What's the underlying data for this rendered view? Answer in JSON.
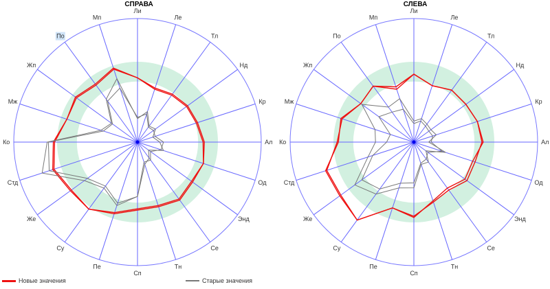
{
  "chart_data": [
    {
      "type": "radar",
      "title": "СПРАВА",
      "axes": [
        "Ли",
        "Ле",
        "Тл",
        "Нд",
        "Кр",
        "Ал",
        "Од",
        "Энд",
        "Се",
        "Тн",
        "Сп",
        "Пе",
        "Су",
        "Же",
        "Стд",
        "Ко",
        "Мж",
        "Жп",
        "По",
        "Мп"
      ],
      "highlighted_axis": "По",
      "range": [
        0,
        1
      ],
      "target_band": [
        0.49,
        0.65
      ],
      "series": [
        {
          "name": "Новые значения",
          "color": "#ee1111",
          "values": [
            0.52,
            0.45,
            0.47,
            0.49,
            0.5,
            0.53,
            0.56,
            0.54,
            0.57,
            0.54,
            0.54,
            0.6,
            0.67,
            0.66,
            0.71,
            0.67,
            0.6,
            0.61,
            0.57,
            0.62
          ]
        },
        {
          "name": "Новые значения",
          "color": "#ee1111",
          "values": [
            0.52,
            0.46,
            0.48,
            0.5,
            0.51,
            0.54,
            0.56,
            0.55,
            0.58,
            0.55,
            0.55,
            0.61,
            0.67,
            0.67,
            0.72,
            0.68,
            0.6,
            0.62,
            0.58,
            0.63
          ]
        },
        {
          "name": "Старые значения",
          "color": "#777777",
          "values": [
            0.19,
            0.26,
            0.16,
            0.18,
            0.13,
            0.18,
            0.22,
            0.11,
            0.16,
            0.19,
            0.44,
            0.54,
            0.46,
            0.53,
            0.81,
            0.73,
            0.31,
            0.26,
            0.43,
            0.54
          ]
        },
        {
          "name": "Старые значения",
          "color": "#777777",
          "values": [
            0.2,
            0.24,
            0.15,
            0.16,
            0.15,
            0.21,
            0.2,
            0.13,
            0.18,
            0.17,
            0.44,
            0.52,
            0.44,
            0.5,
            0.75,
            0.72,
            0.29,
            0.25,
            0.41,
            0.46
          ]
        }
      ]
    },
    {
      "type": "radar",
      "title": "СЛЕВА",
      "axes": [
        "Ли",
        "Ле",
        "Тл",
        "Нд",
        "Кр",
        "Ал",
        "Од",
        "Энд",
        "Се",
        "Тн",
        "Сп",
        "Пе",
        "Су",
        "Же",
        "Стд",
        "Ко",
        "Мж",
        "Жп",
        "По",
        "Мп"
      ],
      "range": [
        0,
        1
      ],
      "target_band": [
        0.49,
        0.65
      ],
      "series": [
        {
          "name": "Новые значения",
          "color": "#ee1111",
          "values": [
            0.55,
            0.48,
            0.52,
            0.52,
            0.54,
            0.56,
            0.5,
            0.51,
            0.46,
            0.5,
            0.61,
            0.56,
            0.78,
            0.74,
            0.75,
            0.61,
            0.62,
            0.53,
            0.56,
            0.47
          ]
        },
        {
          "name": "Новые значения",
          "color": "#ee1111",
          "values": [
            0.55,
            0.48,
            0.52,
            0.52,
            0.54,
            0.55,
            0.52,
            0.53,
            0.48,
            0.51,
            0.6,
            0.56,
            0.78,
            0.73,
            0.74,
            0.62,
            0.61,
            0.53,
            0.56,
            0.45
          ]
        },
        {
          "name": "Старые значения",
          "color": "#777777",
          "values": [
            0.17,
            0.2,
            0.18,
            0.17,
            0.19,
            0.12,
            0.27,
            0.12,
            0.2,
            0.19,
            0.37,
            0.39,
            0.52,
            0.59,
            0.39,
            0.31,
            0.33,
            0.52,
            0.35,
            0.37
          ]
        },
        {
          "name": "Старые значения",
          "color": "#777777",
          "values": [
            0.15,
            0.18,
            0.16,
            0.15,
            0.16,
            0.14,
            0.24,
            0.14,
            0.17,
            0.18,
            0.33,
            0.35,
            0.47,
            0.52,
            0.35,
            0.22,
            0.2,
            0.35,
            0.3,
            0.28
          ]
        }
      ]
    }
  ],
  "legend": {
    "new_label": "Новые значения",
    "new_color": "#ee1111",
    "old_label": "Старые значения",
    "old_color": "#777777"
  }
}
